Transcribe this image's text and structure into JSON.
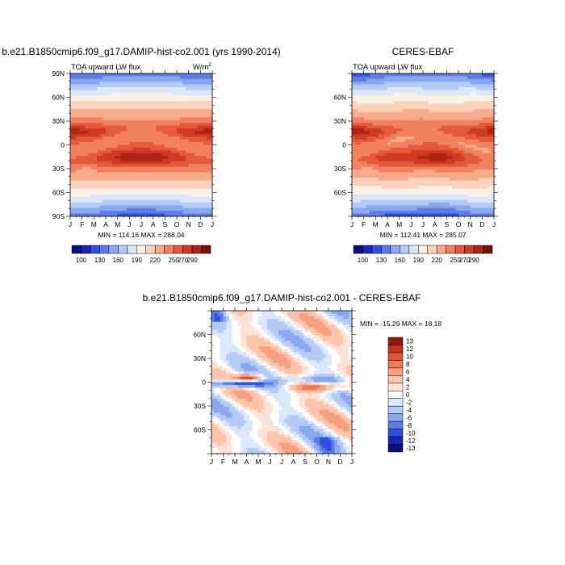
{
  "chart_data": [
    {
      "type": "heatmap",
      "title": "b.e21.B1850cmip6.f09_g17.DAMIP-hist-co2.001 (yrs 1990-2014)",
      "subtitle_left": "TOA upward LW flux",
      "units": "W/m",
      "units_sup": "2",
      "stats": "MIN = 114.16  MAX = 288.04",
      "x_ticks": [
        "J",
        "F",
        "M",
        "A",
        "M",
        "J",
        "J",
        "A",
        "S",
        "O",
        "N",
        "D",
        "J"
      ],
      "y_ticks": [
        "90N",
        "60N",
        "30N",
        "0",
        "30S",
        "60S",
        "90S"
      ],
      "colorbar_labels": [
        "100",
        "130",
        "160",
        "190",
        "220",
        "250",
        "270",
        "290"
      ],
      "field_profile": "model"
    },
    {
      "type": "heatmap",
      "title": "CERES-EBAF",
      "subtitle_left": "TOA upward LW flux",
      "stats": "MIN = 112.41  MAX = 285.07",
      "x_ticks": [
        "J",
        "F",
        "M",
        "A",
        "M",
        "J",
        "J",
        "A",
        "S",
        "O",
        "N",
        "D",
        "J"
      ],
      "y_ticks": [
        "60N",
        "30N",
        "0",
        "30S",
        "60S"
      ],
      "colorbar_labels": [
        "100",
        "130",
        "160",
        "190",
        "220",
        "250",
        "270",
        "290"
      ],
      "field_profile": "obs"
    },
    {
      "type": "heatmap",
      "title": "b.e21.B1850cmip6.f09_g17.DAMIP-hist-co2.001 - CERES-EBAF",
      "stats": "MIN = -15.29  MAX =  18.18",
      "x_ticks": [
        "J",
        "F",
        "M",
        "A",
        "M",
        "J",
        "J",
        "A",
        "S",
        "O",
        "N",
        "D",
        "J"
      ],
      "y_ticks": [
        "60N",
        "30N",
        "0",
        "30S",
        "60S"
      ],
      "colorbar_labels": [
        "13",
        "12",
        "10",
        "8",
        "6",
        "4",
        "2",
        "0",
        "-2",
        "-4",
        "-6",
        "-8",
        "-10",
        "-12",
        "-13"
      ]
    }
  ],
  "colors": {
    "abs": [
      "#0b0f7a",
      "#1625b3",
      "#2f4fe0",
      "#5b7de6",
      "#8aa8ef",
      "#b4cbf5",
      "#dbe7fb",
      "#fdf1e8",
      "#fbd3bd",
      "#f7ab8b",
      "#f2825f",
      "#e65a3c",
      "#cf3a22",
      "#ad2415",
      "#7a1109"
    ],
    "diff": [
      "#0b0f7a",
      "#1625b3",
      "#2f4fe0",
      "#5b7de6",
      "#8aa8ef",
      "#b4cbf5",
      "#dbe7fb",
      "#ffffff",
      "#fde3d6",
      "#fbc4ab",
      "#f7a07f",
      "#f07a56",
      "#e15536",
      "#c53520",
      "#8f1a0e"
    ]
  }
}
